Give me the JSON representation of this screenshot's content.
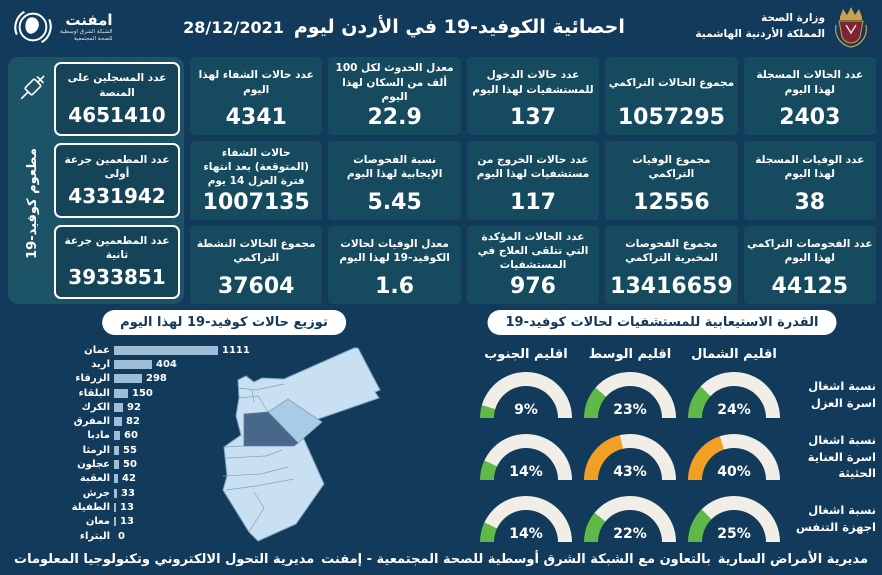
{
  "header": {
    "title": "احصائية الكوفيد-19 في الأردن ليوم",
    "date": "28/12/2021",
    "moh_logo": {
      "line1": "وزارة الصحة",
      "line2": "المملكة الأردنية الهاشمية"
    },
    "emphnet_logo": {
      "name": "امفنت",
      "sub1": "الشبكة الشرق اوسطية",
      "sub2": "للصحة المجتمعية"
    }
  },
  "vaccination": {
    "side_label": "مطعوم كوفيد-19",
    "cards": [
      {
        "label": "عدد المسجلين على المنصة",
        "value": "4651410"
      },
      {
        "label": "عدد المطعمين جرعة أولى",
        "value": "4331942"
      },
      {
        "label": "عدد المطعمين جرعة ثانية",
        "value": "3933851"
      }
    ]
  },
  "stats": {
    "cards": [
      {
        "label": "عدد الحالات المسجلة لهذا اليوم",
        "value": "2403"
      },
      {
        "label": "مجموع الحالات التراكمي",
        "value": "1057295"
      },
      {
        "label": "عدد حالات الدخول للمستشفيات لهذا اليوم",
        "value": "137"
      },
      {
        "label": "معدل الحدوث لكل 100 ألف من السكان لهذا اليوم",
        "value": "22.9"
      },
      {
        "label": "عدد حالات الشفاء لهذا اليوم",
        "value": "4341"
      },
      {
        "label": "عدد الوفيات المسجلة لهذا اليوم",
        "value": "38"
      },
      {
        "label": "مجموع الوفيات التراكمي",
        "value": "12556"
      },
      {
        "label": "عدد حالات الخروج من مستشفيات لهذا اليوم",
        "value": "117"
      },
      {
        "label": "نسبة الفحوصات الإيجابية لهذا اليوم",
        "value": "5.45"
      },
      {
        "label": "حالات الشفاء (المتوقعة) بعد انتهاء فترة العزل 14 يوم",
        "value": "1007135"
      },
      {
        "label": "عدد الفحوصات التراكمي لهذا اليوم",
        "value": "44125"
      },
      {
        "label": "مجموع الفحوصات المخبرية التراكمي",
        "value": "13416659"
      },
      {
        "label": "عدد الحالات المؤكدة التي تتلقى العلاج في المستشفيات",
        "value": "976"
      },
      {
        "label": "معدل الوفيات لحالات الكوفيد-19 لهذا اليوم",
        "value": "1.6"
      },
      {
        "label": "مجموع الحالات النشطة التراكمي",
        "value": "37604"
      }
    ]
  },
  "chart_data": [
    {
      "type": "bar",
      "title": "توزيع حالات كوفيد-19 لهذا اليوم",
      "orientation": "horizontal",
      "categories": [
        "عمان",
        "اربد",
        "الزرقاء",
        "البلقاء",
        "الكرك",
        "المفرق",
        "مادبا",
        "الرمثا",
        "عجلون",
        "العقبة",
        "جرش",
        "الطفيلة",
        "معان",
        "البتراء"
      ],
      "values": [
        1111,
        404,
        298,
        150,
        92,
        82,
        60,
        55,
        50,
        42,
        33,
        13,
        13,
        0
      ],
      "max": 1111,
      "xlim": [
        0,
        1111
      ],
      "bar_color": "#9FBDD4"
    },
    {
      "type": "gauge",
      "title": "القدرة الاستيعابية للمستشفيات لحالات كوفيد-19",
      "unit": "%",
      "regions": [
        "اقليم الشمال",
        "اقليم الوسط",
        "اقليم الجنوب"
      ],
      "rows": [
        {
          "label": "نسبة اشغال اسرة العزل",
          "values": [
            {
              "pct": 24,
              "color": "#5FB848"
            },
            {
              "pct": 23,
              "color": "#5FB848"
            },
            {
              "pct": 9,
              "color": "#5FB848"
            }
          ]
        },
        {
          "label": "نسبة اشغال اسرة العناية الحثيثة",
          "values": [
            {
              "pct": 40,
              "color": "#F2A024"
            },
            {
              "pct": 43,
              "color": "#F2A024"
            },
            {
              "pct": 14,
              "color": "#5FB848"
            }
          ]
        },
        {
          "label": "نسبة اشغال اجهزة التنفس",
          "values": [
            {
              "pct": 25,
              "color": "#5FB848"
            },
            {
              "pct": 22,
              "color": "#5FB848"
            },
            {
              "pct": 14,
              "color": "#5FB848"
            }
          ]
        }
      ]
    }
  ],
  "footer": {
    "right": "مديرية الأمراض السارية",
    "center": "بالتعاون مع الشبكة الشرق أوسطية للصحة المجتمعية - إمفنت",
    "left": "مديرية التحول الالكتروني وتكنولوجيا المعلومات"
  },
  "colors": {
    "background": "#123A5B",
    "card_background": "#164A5F",
    "sidebar_background": "#1D5367",
    "bar_fill": "#9FBDD4",
    "gauge_track": "#F1EEE7",
    "gauge_ok": "#5FB848",
    "gauge_warn": "#F2A024",
    "pill_text": "#12395B",
    "map_light": "#C9E0F2",
    "map_medium": "#A9CBE5",
    "map_dark": "#47688A"
  }
}
